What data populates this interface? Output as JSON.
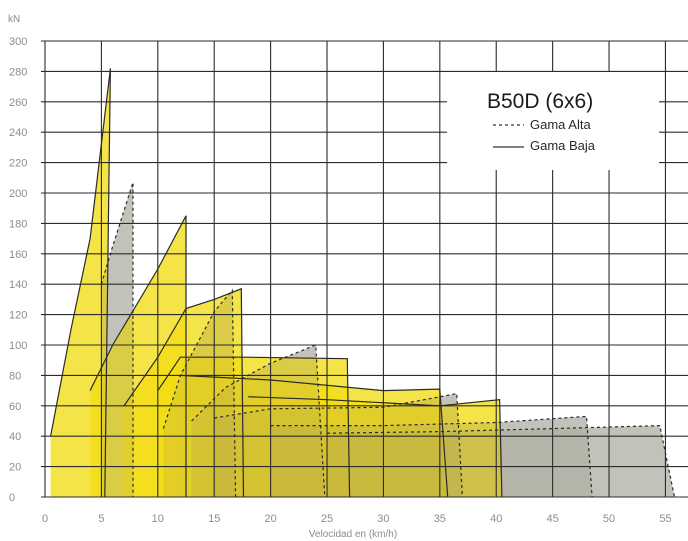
{
  "chart_data": {
    "type": "area",
    "title": "B50D (6x6)",
    "xlabel": "Velocidad en (km/h)",
    "ylabel": "kN",
    "xlim": [
      0,
      57
    ],
    "ylim": [
      0,
      300
    ],
    "x_ticks": [
      0,
      5,
      10,
      15,
      20,
      25,
      30,
      35,
      40,
      45,
      50,
      55
    ],
    "y_ticks": [
      0,
      20,
      40,
      60,
      80,
      100,
      120,
      140,
      160,
      180,
      200,
      220,
      240,
      260,
      280,
      300
    ],
    "grid": true,
    "legend": {
      "position": "top-right",
      "entries": [
        {
          "label": "Gama Alta",
          "style": "dashed"
        },
        {
          "label": "Gama Baja",
          "style": "solid"
        }
      ]
    },
    "series": [
      {
        "name": "Gama Alta",
        "style": "dashed",
        "fill": "#c2c4c6",
        "gears": [
          [
            [
              5.0,
              140
            ],
            [
              6.0,
              165
            ],
            [
              7.8,
              207
            ],
            [
              7.8,
              0
            ]
          ],
          [
            [
              10.5,
              45
            ],
            [
              12.0,
              80
            ],
            [
              15.0,
              122
            ],
            [
              16.6,
              136
            ],
            [
              16.9,
              0
            ]
          ],
          [
            [
              13.0,
              50
            ],
            [
              16.0,
              72
            ],
            [
              20.0,
              88
            ],
            [
              24.0,
              100
            ],
            [
              24.8,
              0
            ]
          ],
          [
            [
              15.0,
              52
            ],
            [
              20.0,
              58
            ],
            [
              30.0,
              59
            ],
            [
              36.5,
              68
            ],
            [
              37.0,
              0
            ]
          ],
          [
            [
              20.0,
              47
            ],
            [
              30.0,
              47
            ],
            [
              40.0,
              49
            ],
            [
              48.0,
              53
            ],
            [
              48.5,
              0
            ]
          ],
          [
            [
              25.0,
              42
            ],
            [
              35.0,
              43
            ],
            [
              45.0,
              45
            ],
            [
              54.5,
              47
            ],
            [
              55.8,
              0
            ]
          ]
        ]
      },
      {
        "name": "Gama Baja",
        "style": "solid",
        "fill": "#f2dc14",
        "gears": [
          [
            [
              0.5,
              40
            ],
            [
              2.3,
              110
            ],
            [
              4.0,
              170
            ],
            [
              5.8,
              282
            ],
            [
              5.3,
              0
            ]
          ],
          [
            [
              4.0,
              70
            ],
            [
              6.0,
              100
            ],
            [
              10.0,
              150
            ],
            [
              12.5,
              185
            ],
            [
              12.5,
              0
            ]
          ],
          [
            [
              7.0,
              60
            ],
            [
              10.0,
              92
            ],
            [
              12.5,
              124
            ],
            [
              15.0,
              130
            ],
            [
              17.4,
              137
            ],
            [
              17.6,
              0
            ]
          ],
          [
            [
              10.0,
              70
            ],
            [
              12.0,
              92
            ],
            [
              18.0,
              92
            ],
            [
              26.8,
              91
            ],
            [
              27.0,
              0
            ]
          ],
          [
            [
              12.0,
              80
            ],
            [
              20.0,
              77
            ],
            [
              30.0,
              70
            ],
            [
              35.0,
              71
            ],
            [
              35.7,
              0
            ]
          ],
          [
            [
              18.0,
              66
            ],
            [
              25.0,
              64
            ],
            [
              35.0,
              60
            ],
            [
              40.3,
              64
            ],
            [
              40.5,
              0
            ]
          ]
        ]
      }
    ]
  }
}
